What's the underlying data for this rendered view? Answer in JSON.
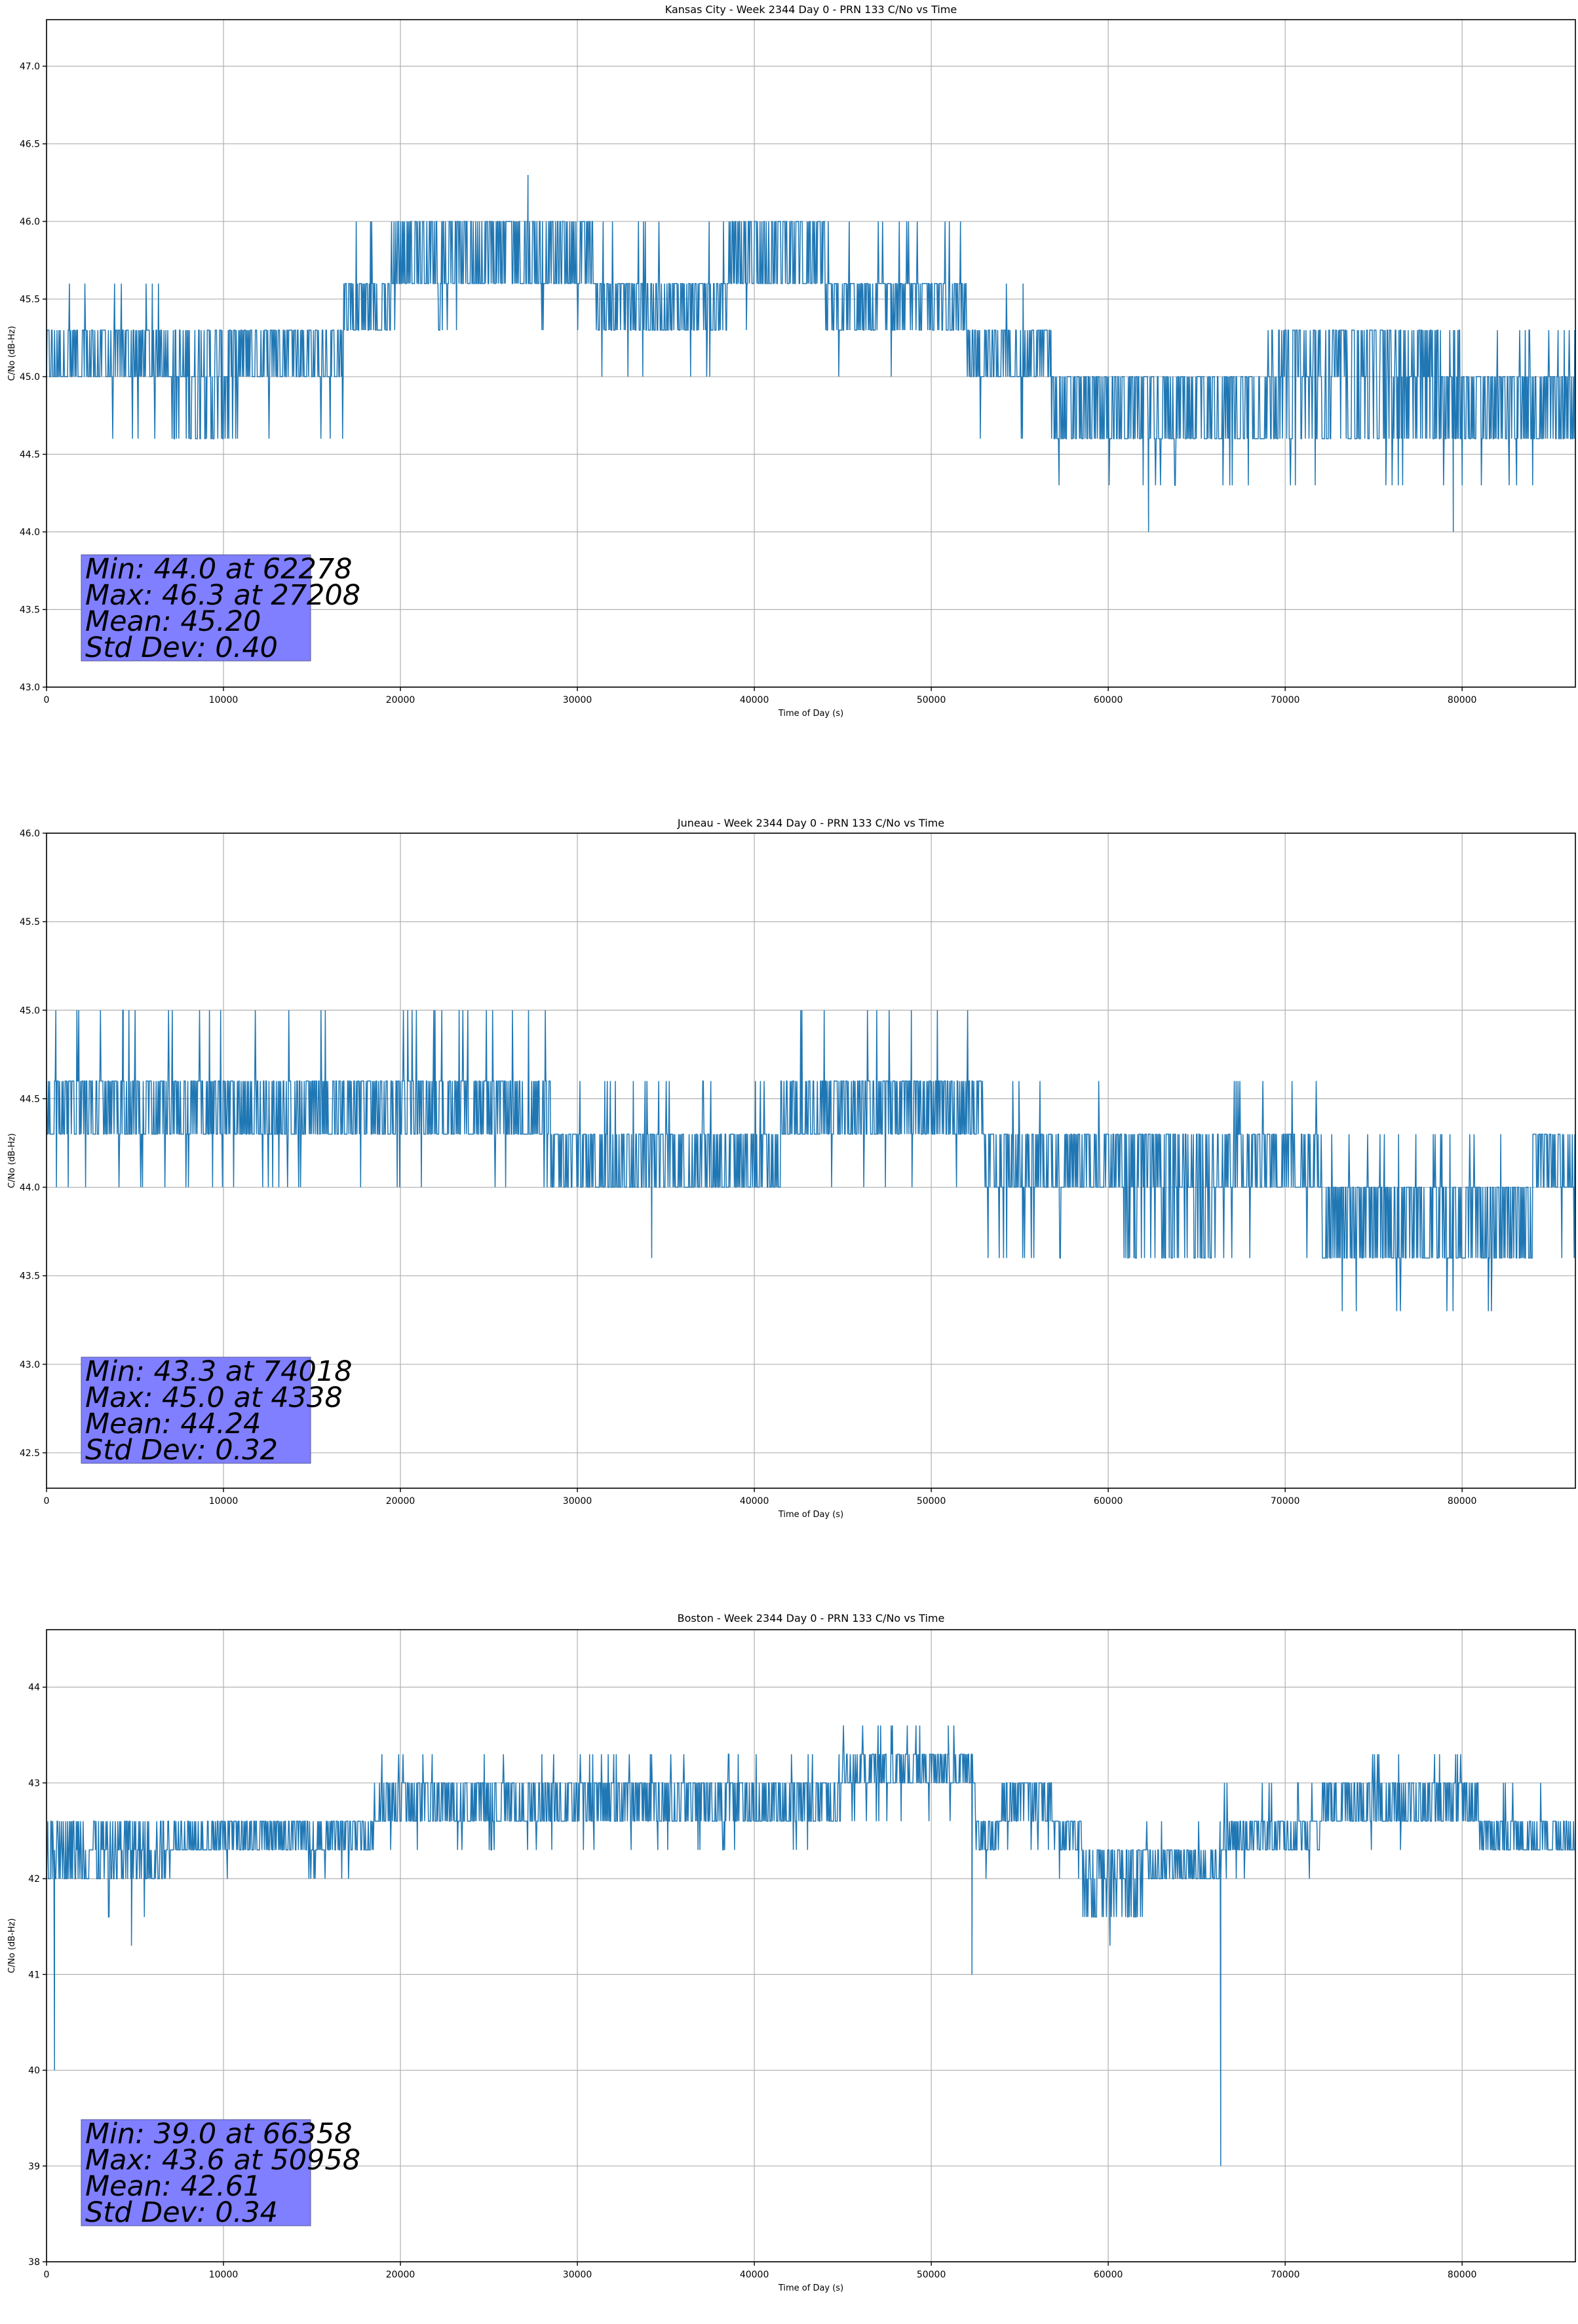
{
  "chart_data": [
    {
      "type": "line",
      "title": "Kansas City - Week 2344 Day 0 - PRN 133 C/No vs Time",
      "xlabel": "Time of Day (s)",
      "ylabel": "C/No (dB-Hz)",
      "xlim": [
        0,
        86400
      ],
      "ylim": [
        43.0,
        47.3
      ],
      "xticks": [
        0,
        10000,
        20000,
        30000,
        40000,
        50000,
        60000,
        70000,
        80000
      ],
      "yticks": [
        "43.0",
        "43.5",
        "44.0",
        "44.5",
        "45.0",
        "45.5",
        "46.0",
        "46.5",
        "47.0"
      ],
      "grid": true,
      "color": "#1f77b4",
      "stats": [
        "Min: 44.0 at 62278",
        "Max: 46.3 at 27208",
        "Mean: 45.20",
        "Std Dev: 0.40"
      ],
      "stats_location": "lower-left",
      "segments": [
        {
          "t0": 0,
          "t1": 7200,
          "levels": [
            45.0,
            45.3
          ],
          "spike_hi": 45.6,
          "spike_lo": 44.6
        },
        {
          "t0": 7200,
          "t1": 11000,
          "levels": [
            44.6,
            45.0,
            45.3
          ],
          "spike_hi": 45.3,
          "spike_lo": 44.6
        },
        {
          "t0": 11000,
          "t1": 16800,
          "levels": [
            45.0,
            45.3
          ],
          "spike_hi": 45.3,
          "spike_lo": 44.6
        },
        {
          "t0": 16800,
          "t1": 19500,
          "levels": [
            45.3,
            45.6
          ],
          "spike_hi": 46.0,
          "spike_lo": 45.3
        },
        {
          "t0": 19500,
          "t1": 31000,
          "levels": [
            45.6,
            46.0
          ],
          "spike_hi": 46.0,
          "spike_lo": 45.3
        },
        {
          "t0": 31000,
          "t1": 38500,
          "levels": [
            45.3,
            45.6
          ],
          "spike_hi": 46.0,
          "spike_lo": 45.0
        },
        {
          "t0": 38500,
          "t1": 44000,
          "levels": [
            45.6,
            46.0
          ],
          "spike_hi": 46.0,
          "spike_lo": 45.3
        },
        {
          "t0": 44000,
          "t1": 52000,
          "levels": [
            45.3,
            45.6
          ],
          "spike_hi": 46.0,
          "spike_lo": 45.0
        },
        {
          "t0": 52000,
          "t1": 56800,
          "levels": [
            45.0,
            45.3
          ],
          "spike_hi": 45.6,
          "spike_lo": 44.6
        },
        {
          "t0": 56800,
          "t1": 69000,
          "levels": [
            44.6,
            45.0
          ],
          "spike_hi": 45.0,
          "spike_lo": 44.3
        },
        {
          "t0": 69000,
          "t1": 80000,
          "levels": [
            44.6,
            45.0,
            45.3
          ],
          "spike_hi": 45.3,
          "spike_lo": 44.3
        },
        {
          "t0": 80000,
          "t1": 86400,
          "levels": [
            44.6,
            45.0
          ],
          "spike_hi": 45.3,
          "spike_lo": 44.3
        }
      ],
      "extremes": [
        {
          "t": 62278,
          "v": 44.0
        },
        {
          "t": 27208,
          "v": 46.3
        },
        {
          "t": 79500,
          "v": 44.0
        }
      ]
    },
    {
      "type": "line",
      "title": "Juneau - Week 2344 Day 0 - PRN 133 C/No vs Time",
      "xlabel": "Time of Day (s)",
      "ylabel": "C/No (dB-Hz)",
      "xlim": [
        0,
        86400
      ],
      "ylim": [
        42.3,
        46.0
      ],
      "xticks": [
        0,
        10000,
        20000,
        30000,
        40000,
        50000,
        60000,
        70000,
        80000
      ],
      "yticks": [
        "42.5",
        "43.0",
        "43.5",
        "44.0",
        "44.5",
        "45.0",
        "45.5",
        "46.0"
      ],
      "grid": true,
      "color": "#1f77b4",
      "stats": [
        "Min: 43.3 at 74018",
        "Max: 45.0 at 4338",
        "Mean: 44.24",
        "Std Dev: 0.32"
      ],
      "stats_location": "lower-left",
      "segments": [
        {
          "t0": 0,
          "t1": 28500,
          "levels": [
            44.3,
            44.6
          ],
          "spike_hi": 45.0,
          "spike_lo": 44.0
        },
        {
          "t0": 28500,
          "t1": 41500,
          "levels": [
            44.0,
            44.3
          ],
          "spike_hi": 44.6,
          "spike_lo": 44.0
        },
        {
          "t0": 41500,
          "t1": 53000,
          "levels": [
            44.3,
            44.6
          ],
          "spike_hi": 45.0,
          "spike_lo": 44.0
        },
        {
          "t0": 53000,
          "t1": 61000,
          "levels": [
            44.0,
            44.3
          ],
          "spike_hi": 44.6,
          "spike_lo": 43.6
        },
        {
          "t0": 61000,
          "t1": 66000,
          "levels": [
            43.6,
            44.0,
            44.3
          ],
          "spike_hi": 44.3,
          "spike_lo": 43.6
        },
        {
          "t0": 66000,
          "t1": 72000,
          "levels": [
            44.0,
            44.3
          ],
          "spike_hi": 44.6,
          "spike_lo": 43.6
        },
        {
          "t0": 72000,
          "t1": 84000,
          "levels": [
            43.6,
            44.0
          ],
          "spike_hi": 44.3,
          "spike_lo": 43.3
        },
        {
          "t0": 84000,
          "t1": 86400,
          "levels": [
            44.0,
            44.3
          ],
          "spike_hi": 44.3,
          "spike_lo": 43.6
        }
      ],
      "extremes": [
        {
          "t": 74018,
          "v": 43.3
        },
        {
          "t": 4338,
          "v": 45.0
        },
        {
          "t": 34200,
          "v": 43.6
        }
      ]
    },
    {
      "type": "line",
      "title": "Boston - Week 2344 Day 0 - PRN 133 C/No vs Time",
      "xlabel": "Time of Day (s)",
      "ylabel": "C/No (dB-Hz)",
      "xlim": [
        0,
        86400
      ],
      "ylim": [
        38,
        44.6
      ],
      "xticks": [
        0,
        10000,
        20000,
        30000,
        40000,
        50000,
        60000,
        70000,
        80000
      ],
      "yticks": [
        "38",
        "39",
        "40",
        "41",
        "42",
        "43",
        "44"
      ],
      "grid": true,
      "color": "#1f77b4",
      "stats": [
        "Min: 39.0 at 66358",
        "Max: 43.6 at 50958",
        "Mean: 42.61",
        "Std Dev: 0.34"
      ],
      "stats_location": "lower-left",
      "segments": [
        {
          "t0": 0,
          "t1": 7000,
          "levels": [
            42.0,
            42.3,
            42.6
          ],
          "spike_hi": 42.6,
          "spike_lo": 41.6
        },
        {
          "t0": 7000,
          "t1": 18500,
          "levels": [
            42.3,
            42.6
          ],
          "spike_hi": 42.6,
          "spike_lo": 42.0
        },
        {
          "t0": 18500,
          "t1": 35000,
          "levels": [
            42.6,
            43.0
          ],
          "spike_hi": 43.3,
          "spike_lo": 42.3
        },
        {
          "t0": 35000,
          "t1": 45000,
          "levels": [
            42.6,
            43.0
          ],
          "spike_hi": 43.3,
          "spike_lo": 42.3
        },
        {
          "t0": 45000,
          "t1": 52500,
          "levels": [
            43.0,
            43.3
          ],
          "spike_hi": 43.6,
          "spike_lo": 42.6
        },
        {
          "t0": 52500,
          "t1": 54000,
          "levels": [
            42.3,
            42.6
          ],
          "spike_hi": 43.0,
          "spike_lo": 42.0
        },
        {
          "t0": 54000,
          "t1": 57000,
          "levels": [
            42.6,
            43.0
          ],
          "spike_hi": 43.0,
          "spike_lo": 42.3
        },
        {
          "t0": 57000,
          "t1": 58500,
          "levels": [
            42.3,
            42.6
          ],
          "spike_hi": 42.6,
          "spike_lo": 42.0
        },
        {
          "t0": 58500,
          "t1": 62000,
          "levels": [
            41.6,
            42.0,
            42.3
          ],
          "spike_hi": 42.3,
          "spike_lo": 41.6
        },
        {
          "t0": 62000,
          "t1": 66500,
          "levels": [
            42.0,
            42.3
          ],
          "spike_hi": 42.6,
          "spike_lo": 42.0
        },
        {
          "t0": 66500,
          "t1": 72000,
          "levels": [
            42.3,
            42.6
          ],
          "spike_hi": 43.0,
          "spike_lo": 42.0
        },
        {
          "t0": 72000,
          "t1": 81000,
          "levels": [
            42.6,
            43.0
          ],
          "spike_hi": 43.3,
          "spike_lo": 42.3
        },
        {
          "t0": 81000,
          "t1": 86400,
          "levels": [
            42.3,
            42.6
          ],
          "spike_hi": 43.0,
          "spike_lo": 42.3
        }
      ],
      "extremes": [
        {
          "t": 66358,
          "v": 39.0
        },
        {
          "t": 50958,
          "v": 43.6
        },
        {
          "t": 450,
          "v": 40.0
        },
        {
          "t": 52300,
          "v": 41.0
        },
        {
          "t": 60100,
          "v": 41.3
        },
        {
          "t": 4800,
          "v": 41.3
        }
      ]
    }
  ]
}
